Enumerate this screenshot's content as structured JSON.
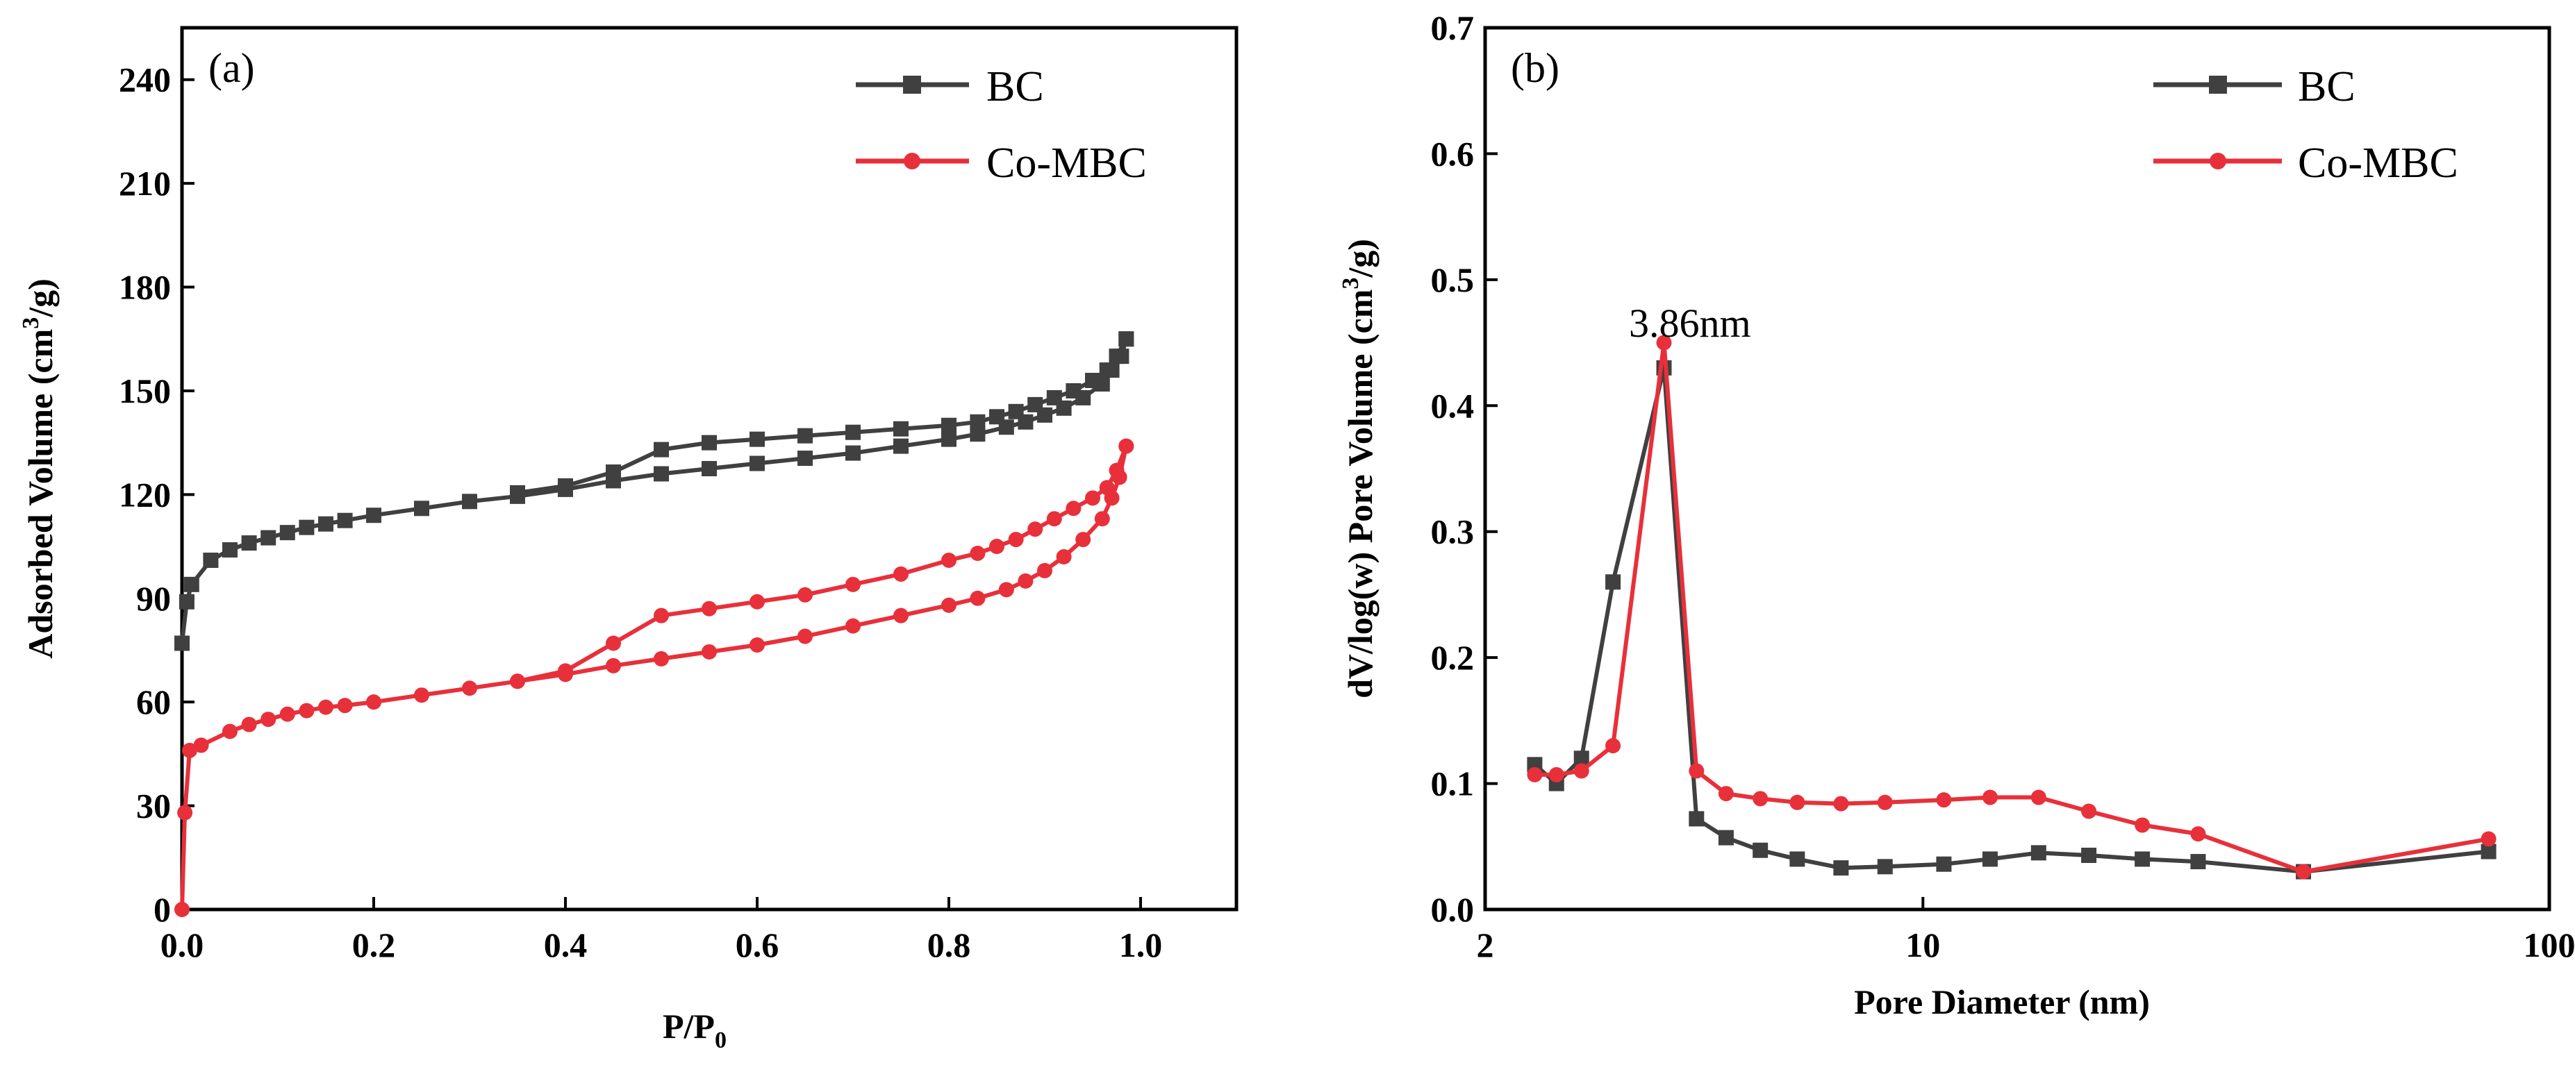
{
  "colors": {
    "bc": "#404040",
    "comb": "#e8303a",
    "axis": "#000000"
  },
  "chart_data": [
    {
      "type": "line",
      "panel_label": "(a)",
      "title": "",
      "xlabel": "P/P",
      "xlabel_sub": "0",
      "ylabel": "Adsorbed Volume (cm",
      "ylabel_sup": "3",
      "ylabel_end": "/g)",
      "xlim": [
        0,
        1.1
      ],
      "ylim": [
        0,
        255
      ],
      "xticks": [
        0,
        0.2,
        0.4,
        0.6,
        0.8,
        1.0
      ],
      "xtick_labels": [
        "0.0",
        "0.2",
        "0.4",
        "0.6",
        "0.8",
        "1.0"
      ],
      "yticks": [
        0,
        30,
        60,
        90,
        120,
        150,
        180,
        210,
        240
      ],
      "ytick_labels": [
        "0",
        "30",
        "60",
        "90",
        "120",
        "150",
        "180",
        "210",
        "240"
      ],
      "legend": {
        "placement": "top-right",
        "entries": [
          "BC",
          "Co-MBC"
        ]
      },
      "series": [
        {
          "name": "BC",
          "marker": "square",
          "x": [
            0.0,
            0.005,
            0.01,
            0.03,
            0.05,
            0.07,
            0.09,
            0.11,
            0.13,
            0.15,
            0.17,
            0.2,
            0.25,
            0.3,
            0.35,
            0.4,
            0.45,
            0.5,
            0.55,
            0.6,
            0.65,
            0.7,
            0.75,
            0.8,
            0.83,
            0.86,
            0.88,
            0.9,
            0.92,
            0.94,
            0.96,
            0.97,
            0.98,
            0.985,
            0.985,
            0.975,
            0.965,
            0.95,
            0.93,
            0.91,
            0.89,
            0.87,
            0.85,
            0.83,
            0.8,
            0.75,
            0.7,
            0.65,
            0.6,
            0.55,
            0.5,
            0.45,
            0.4,
            0.35
          ],
          "y": [
            77,
            89,
            94,
            101,
            104,
            106,
            107.5,
            109,
            110.5,
            111.5,
            112.5,
            114,
            116,
            118,
            119.5,
            121.5,
            124,
            126,
            127.5,
            129,
            130.5,
            132,
            134,
            136,
            137.5,
            139.5,
            141,
            143,
            145,
            148,
            152,
            156,
            160,
            165,
            165,
            160,
            156,
            153,
            150,
            148,
            146,
            144,
            142.5,
            141,
            140,
            139,
            138,
            137,
            136,
            135,
            133,
            126.5,
            122.5,
            120.5
          ]
        },
        {
          "name": "Co-MBC",
          "marker": "circle",
          "x": [
            0.0,
            0.003,
            0.008,
            0.02,
            0.05,
            0.07,
            0.09,
            0.11,
            0.13,
            0.15,
            0.17,
            0.2,
            0.25,
            0.3,
            0.35,
            0.4,
            0.45,
            0.5,
            0.55,
            0.6,
            0.65,
            0.7,
            0.75,
            0.8,
            0.83,
            0.86,
            0.88,
            0.9,
            0.92,
            0.94,
            0.96,
            0.97,
            0.978,
            0.985,
            0.985,
            0.975,
            0.965,
            0.95,
            0.93,
            0.91,
            0.89,
            0.87,
            0.85,
            0.83,
            0.8,
            0.75,
            0.7,
            0.65,
            0.6,
            0.55,
            0.5,
            0.45,
            0.4,
            0.35
          ],
          "y": [
            0,
            28,
            46,
            47.5,
            51.5,
            53.5,
            55,
            56.5,
            57.5,
            58.5,
            59,
            60,
            62,
            64,
            66,
            68,
            70.5,
            72.5,
            74.5,
            76.5,
            79,
            82,
            85,
            88,
            90,
            92.5,
            95,
            98,
            102,
            107,
            113,
            119,
            125,
            134,
            134,
            127,
            122,
            119,
            116,
            113,
            110,
            107,
            105,
            103,
            101,
            97,
            94,
            91,
            89,
            87,
            85,
            77,
            69,
            66
          ]
        }
      ]
    },
    {
      "type": "line",
      "panel_label": "(b)",
      "title": "",
      "xscale": "log",
      "xlabel": "Pore Diameter (nm)",
      "ylabel": "dV/log(w) Pore Volume (cm",
      "ylabel_sup": "3",
      "ylabel_end": "/g)",
      "xlim": [
        2,
        100
      ],
      "ylim": [
        0,
        0.7
      ],
      "xticks": [
        2,
        10,
        100
      ],
      "xtick_labels": [
        "2",
        "10",
        "100"
      ],
      "yticks": [
        0,
        0.1,
        0.2,
        0.3,
        0.4,
        0.5,
        0.6,
        0.7
      ],
      "ytick_labels": [
        "0.0",
        "0.1",
        "0.2",
        "0.3",
        "0.4",
        "0.5",
        "0.6",
        "0.7"
      ],
      "legend": {
        "placement": "top-right",
        "entries": [
          "BC",
          "Co-MBC"
        ]
      },
      "annotations": [
        {
          "text": "3.86nm",
          "x": 3.86,
          "y": 0.45
        }
      ],
      "series": [
        {
          "name": "BC",
          "marker": "square",
          "x": [
            2.4,
            2.6,
            2.85,
            3.2,
            3.86,
            4.35,
            4.85,
            5.5,
            6.3,
            7.4,
            8.7,
            10.8,
            12.8,
            15.3,
            18.4,
            22.4,
            27.5,
            40.5,
            80.0
          ],
          "y": [
            0.115,
            0.1,
            0.12,
            0.26,
            0.43,
            0.072,
            0.057,
            0.047,
            0.04,
            0.033,
            0.034,
            0.036,
            0.04,
            0.045,
            0.043,
            0.04,
            0.038,
            0.03,
            0.046
          ]
        },
        {
          "name": "Co-MBC",
          "marker": "circle",
          "x": [
            2.4,
            2.6,
            2.85,
            3.2,
            3.86,
            4.35,
            4.85,
            5.5,
            6.3,
            7.4,
            8.7,
            10.8,
            12.8,
            15.3,
            18.4,
            22.4,
            27.5,
            40.5,
            80.0
          ],
          "y": [
            0.107,
            0.107,
            0.11,
            0.13,
            0.45,
            0.11,
            0.092,
            0.088,
            0.085,
            0.084,
            0.085,
            0.087,
            0.089,
            0.089,
            0.078,
            0.067,
            0.06,
            0.03,
            0.056
          ]
        }
      ]
    }
  ]
}
